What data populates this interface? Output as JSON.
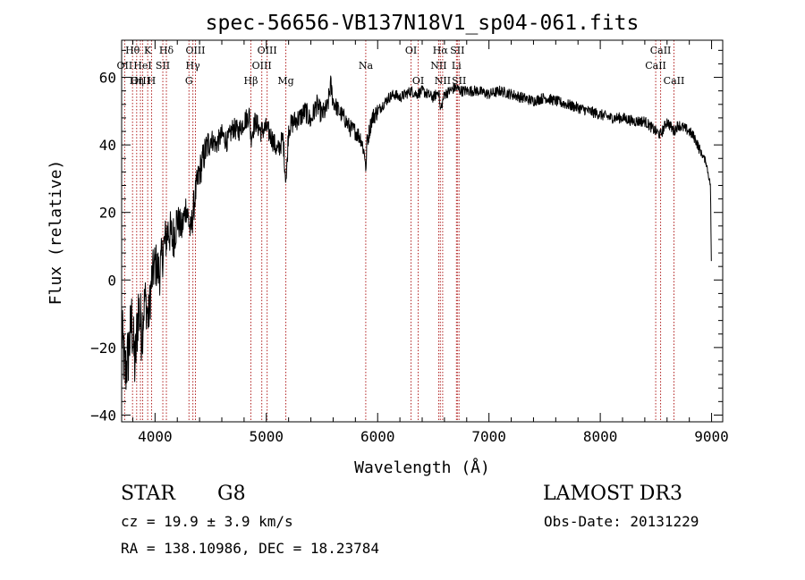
{
  "chart_data": {
    "type": "line",
    "title": "spec-56656-VB137N18V1_sp04-061.fits",
    "xlabel": "Wavelength (Å)",
    "ylabel": "Flux (relative)",
    "xlim": [
      3700,
      9100
    ],
    "ylim": [
      -42,
      71
    ],
    "x_ticks": [
      4000,
      5000,
      6000,
      7000,
      8000,
      9000
    ],
    "y_ticks": [
      -40,
      -20,
      0,
      20,
      40,
      60
    ],
    "grid": false,
    "series": [
      {
        "color": "#000000",
        "noise": "high below 4500 Å, moderate elsewhere",
        "x": [
          3700,
          3730,
          3760,
          3790,
          3820,
          3850,
          3880,
          3910,
          3940,
          3970,
          4000,
          4040,
          4080,
          4120,
          4160,
          4200,
          4240,
          4280,
          4320,
          4360,
          4400,
          4450,
          4500,
          4550,
          4600,
          4650,
          4700,
          4750,
          4800,
          4850,
          4860,
          4900,
          4950,
          5000,
          5050,
          5100,
          5150,
          5170,
          5180,
          5200,
          5250,
          5300,
          5350,
          5400,
          5450,
          5500,
          5550,
          5577,
          5600,
          5650,
          5700,
          5750,
          5800,
          5850,
          5890,
          5895,
          5900,
          5950,
          6000,
          6050,
          6100,
          6150,
          6200,
          6250,
          6300,
          6350,
          6400,
          6450,
          6500,
          6550,
          6563,
          6600,
          6650,
          6700,
          6750,
          6800,
          6900,
          7000,
          7100,
          7200,
          7300,
          7400,
          7500,
          7600,
          7700,
          7800,
          7900,
          8000,
          8100,
          8200,
          8300,
          8400,
          8498,
          8542,
          8600,
          8662,
          8700,
          8800,
          8850,
          8900,
          8950,
          8990,
          9000
        ],
        "y": [
          -15,
          -28,
          -22,
          -12,
          -26,
          -8,
          -15,
          -5,
          -12,
          0,
          5,
          2,
          10,
          15,
          12,
          18,
          15,
          22,
          14,
          25,
          32,
          38,
          42,
          40,
          43,
          41,
          45,
          44,
          47,
          49,
          42,
          47,
          44,
          45,
          42,
          38,
          42,
          32,
          30,
          45,
          47,
          48,
          50,
          47,
          52,
          49,
          51,
          58,
          53,
          50,
          48,
          45,
          44,
          42,
          36,
          29,
          40,
          48,
          50,
          52,
          54,
          55,
          54,
          55,
          56,
          55,
          56,
          55,
          54,
          56,
          50,
          55,
          56,
          57,
          56,
          56,
          56,
          55,
          56,
          55,
          54,
          53,
          54,
          53,
          52,
          51,
          50,
          49,
          48,
          48,
          47,
          47,
          44,
          43,
          47,
          44,
          46,
          44,
          42,
          38,
          35,
          28,
          0
        ]
      }
    ],
    "lines": [
      {
        "name": "Hθ",
        "x": 3798,
        "row": 0
      },
      {
        "name": "OII",
        "x": 3727,
        "row": 1
      },
      {
        "name": "Hη",
        "x": 3835,
        "row": 2
      },
      {
        "name": "OIII",
        "x": 3869,
        "row": 2
      },
      {
        "name": "K",
        "x": 3934,
        "row": 0
      },
      {
        "name": "HeI",
        "x": 3889,
        "row": 1
      },
      {
        "name": "H",
        "x": 3969,
        "row": 2
      },
      {
        "name": "Hδ",
        "x": 4102,
        "row": 0
      },
      {
        "name": "SII",
        "x": 4070,
        "row": 1
      },
      {
        "name": "OIII",
        "x": 4363,
        "row": 0
      },
      {
        "name": "Hγ",
        "x": 4340,
        "row": 1
      },
      {
        "name": "G",
        "x": 4305,
        "row": 2
      },
      {
        "name": "OIII",
        "x": 5007,
        "row": 0
      },
      {
        "name": "OIII",
        "x": 4959,
        "row": 1
      },
      {
        "name": "Hβ",
        "x": 4861,
        "row": 2
      },
      {
        "name": "Mg",
        "x": 5175,
        "row": 2
      },
      {
        "name": "Na",
        "x": 5893,
        "row": 1
      },
      {
        "name": "OI",
        "x": 6300,
        "row": 0
      },
      {
        "name": "OI",
        "x": 6364,
        "row": 2
      },
      {
        "name": "Hα",
        "x": 6563,
        "row": 0
      },
      {
        "name": "SII",
        "x": 6716,
        "row": 0
      },
      {
        "name": "NII",
        "x": 6548,
        "row": 1
      },
      {
        "name": "Li",
        "x": 6708,
        "row": 1
      },
      {
        "name": "NII",
        "x": 6584,
        "row": 2
      },
      {
        "name": "SII",
        "x": 6731,
        "row": 2
      },
      {
        "name": "CaII",
        "x": 8542,
        "row": 0
      },
      {
        "name": "CaII",
        "x": 8498,
        "row": 1
      },
      {
        "name": "CaII",
        "x": 8662,
        "row": 2
      }
    ],
    "line_color": "#b22222"
  },
  "info": {
    "class": "STAR",
    "subclass": "G8",
    "survey": "LAMOST DR3",
    "cz": "cz = 19.9 ± 3.9 km/s",
    "obs_date": "Obs-Date: 20131229",
    "coords": "RA = 138.10986, DEC =  18.23784"
  }
}
